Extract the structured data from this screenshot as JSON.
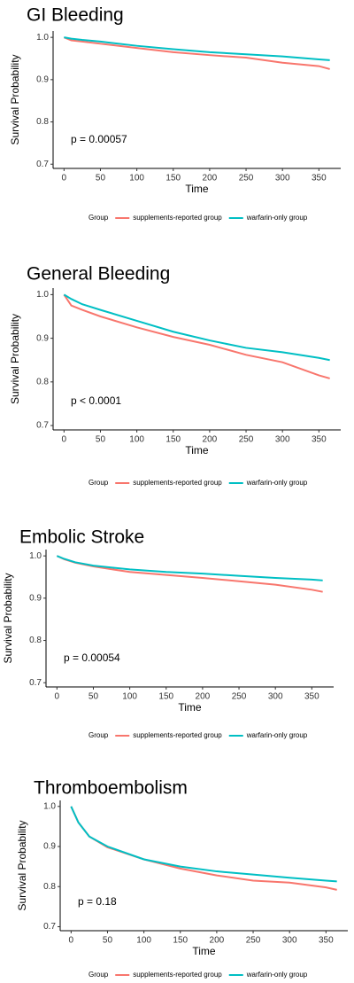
{
  "chart_data": [
    {
      "type": "line",
      "title": "GI Bleeding",
      "x_label": "Time",
      "y_label": "Survival Probability",
      "annotation": "p = 0.00057",
      "legend_title": "Group",
      "x": [
        0,
        10,
        25,
        50,
        100,
        150,
        200,
        250,
        300,
        350,
        365
      ],
      "series": [
        {
          "name": "supplements-reported group",
          "color": "#f8766d",
          "values": [
            1.0,
            0.993,
            0.99,
            0.985,
            0.975,
            0.965,
            0.958,
            0.952,
            0.94,
            0.932,
            0.925
          ]
        },
        {
          "name": "warfarin-only group",
          "color": "#00bfc4",
          "values": [
            1.0,
            0.997,
            0.994,
            0.99,
            0.98,
            0.972,
            0.965,
            0.96,
            0.955,
            0.948,
            0.946
          ]
        }
      ],
      "xlim": [
        -15,
        380
      ],
      "ylim": [
        0.69,
        1.015
      ],
      "xticks": [
        0,
        50,
        100,
        150,
        200,
        250,
        300,
        350
      ],
      "yticks": [
        0.7,
        0.8,
        0.9,
        {
          "value": 1,
          "label": "1.0"
        }
      ]
    },
    {
      "type": "line",
      "title": "General Bleeding",
      "x_label": "Time",
      "y_label": "Survival Probability",
      "annotation": "p < 0.0001",
      "legend_title": "Group",
      "x": [
        0,
        10,
        25,
        50,
        100,
        150,
        200,
        250,
        300,
        350,
        365
      ],
      "series": [
        {
          "name": "supplements-reported group",
          "color": "#f8766d",
          "values": [
            1.0,
            0.975,
            0.965,
            0.95,
            0.925,
            0.903,
            0.885,
            0.862,
            0.845,
            0.815,
            0.808
          ]
        },
        {
          "name": "warfarin-only group",
          "color": "#00bfc4",
          "values": [
            1.0,
            0.99,
            0.978,
            0.965,
            0.94,
            0.915,
            0.895,
            0.878,
            0.868,
            0.855,
            0.85
          ]
        }
      ],
      "xlim": [
        -15,
        380
      ],
      "ylim": [
        0.69,
        1.015
      ],
      "xticks": [
        0,
        50,
        100,
        150,
        200,
        250,
        300,
        350
      ],
      "yticks": [
        0.7,
        0.8,
        0.9,
        {
          "value": 1,
          "label": "1.0"
        }
      ]
    },
    {
      "type": "line",
      "title": "Embolic Stroke",
      "x_label": "Time",
      "y_label": "Survival Probability",
      "annotation": "p = 0.00054",
      "legend_title": "Group",
      "x": [
        0,
        10,
        25,
        50,
        100,
        150,
        200,
        250,
        300,
        350,
        365
      ],
      "series": [
        {
          "name": "supplements-reported group",
          "color": "#f8766d",
          "values": [
            1.0,
            0.992,
            0.984,
            0.975,
            0.962,
            0.955,
            0.948,
            0.94,
            0.932,
            0.92,
            0.915
          ]
        },
        {
          "name": "warfarin-only group",
          "color": "#00bfc4",
          "values": [
            1.0,
            0.993,
            0.985,
            0.977,
            0.968,
            0.962,
            0.958,
            0.953,
            0.948,
            0.944,
            0.942
          ]
        }
      ],
      "xlim": [
        -15,
        380
      ],
      "ylim": [
        0.69,
        1.015
      ],
      "xticks": [
        0,
        50,
        100,
        150,
        200,
        250,
        300,
        350
      ],
      "yticks": [
        0.7,
        0.8,
        0.9,
        {
          "value": 1,
          "label": "1.0"
        }
      ]
    },
    {
      "type": "line",
      "title": "Thromboembolism",
      "x_label": "Time",
      "y_label": "Survival Probability",
      "annotation": "p = 0.18",
      "legend_title": "Group",
      "x": [
        0,
        10,
        25,
        50,
        100,
        150,
        200,
        250,
        300,
        350,
        365
      ],
      "series": [
        {
          "name": "supplements-reported group",
          "color": "#f8766d",
          "values": [
            1.0,
            0.96,
            0.925,
            0.898,
            0.868,
            0.845,
            0.828,
            0.815,
            0.81,
            0.798,
            0.792
          ]
        },
        {
          "name": "warfarin-only group",
          "color": "#00bfc4",
          "values": [
            1.0,
            0.96,
            0.925,
            0.9,
            0.868,
            0.85,
            0.838,
            0.83,
            0.822,
            0.815,
            0.813
          ]
        }
      ],
      "xlim": [
        -15,
        380
      ],
      "ylim": [
        0.69,
        1.015
      ],
      "xticks": [
        0,
        50,
        100,
        150,
        200,
        250,
        300,
        350
      ],
      "yticks": [
        0.7,
        0.8,
        0.9,
        {
          "value": 1,
          "label": "1.0"
        }
      ]
    }
  ]
}
